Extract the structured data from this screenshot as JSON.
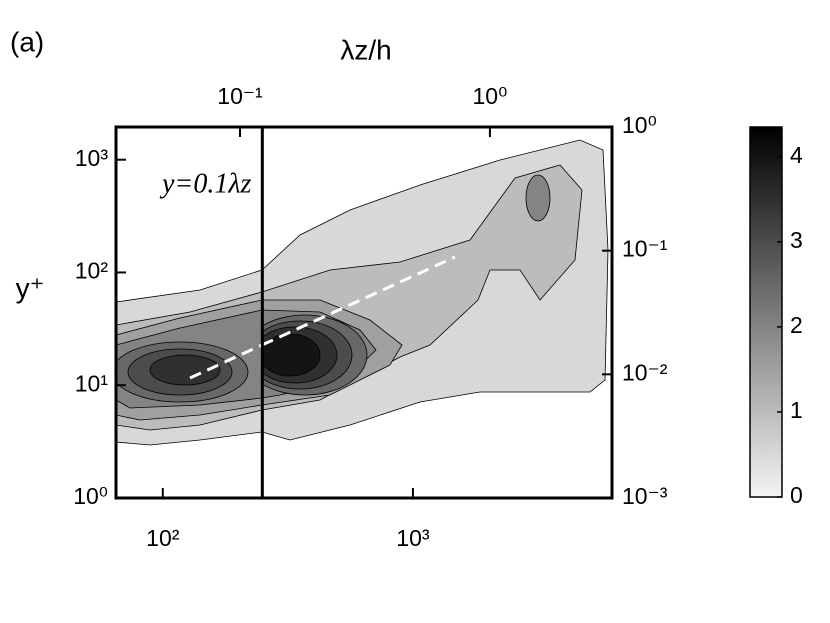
{
  "panel_label": "(a)",
  "chart_data": {
    "type": "contour",
    "x2label": "λz/h",
    "ylabel": "y⁺",
    "annotation": "y=0.1λz",
    "xscale": "log",
    "xlim": [
      65,
      6250
    ],
    "xticks": [
      {
        "value": 100,
        "label": "10²"
      },
      {
        "value": 1000,
        "label": "10³"
      }
    ],
    "x2lim": [
      0.0319,
      3.08
    ],
    "x2ticks": [
      {
        "value": 0.1,
        "label": "10⁻¹"
      },
      {
        "value": 1,
        "label": "10⁰"
      }
    ],
    "ylim": [
      1,
      1950
    ],
    "yticks": [
      {
        "value": 1,
        "label": "10⁰"
      },
      {
        "value": 10,
        "label": "10¹"
      },
      {
        "value": 100,
        "label": "10²"
      },
      {
        "value": 1000,
        "label": "10³"
      }
    ],
    "y2lim": [
      0.001,
      1
    ],
    "y2ticks": [
      {
        "value": 0.001,
        "label": "10⁻³"
      },
      {
        "value": 0.01,
        "label": "10⁻²"
      },
      {
        "value": 0.1,
        "label": "10⁻¹"
      },
      {
        "value": 1,
        "label": "10⁰"
      }
    ],
    "levels": [
      0.5,
      1,
      1.5,
      2,
      2.5,
      3,
      3.5,
      4
    ],
    "reference_line_x": 250,
    "colorbar": {
      "lim": [
        0,
        4.35
      ],
      "ticks": [
        0,
        1,
        2,
        3,
        4
      ]
    }
  }
}
